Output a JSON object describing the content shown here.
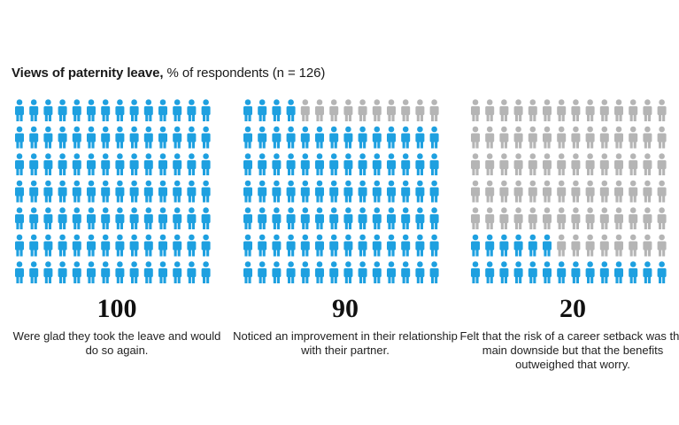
{
  "header": {
    "title_bold": "Views of paternity leave,",
    "title_rest": " % of respondents (n = 126)"
  },
  "colors": {
    "highlight": "#1ea0e0",
    "muted": "#b5b5b5"
  },
  "icon": "person-icon",
  "chart_data": [
    {
      "type": "pictogram",
      "value": 100,
      "value_label": "100",
      "caption": "Were glad they took the leave and would do so again.",
      "highlighted_share_percent": 100
    },
    {
      "type": "pictogram",
      "value": 90,
      "value_label": "90",
      "caption": "Noticed an improvement in their relationship with their partner.",
      "highlighted_share_percent": 90
    },
    {
      "type": "pictogram",
      "value": 20,
      "value_label": "20",
      "caption": "Felt that the risk of a career setback was the main downside but that the benefits outweighed that worry.",
      "highlighted_share_percent": 20
    }
  ]
}
